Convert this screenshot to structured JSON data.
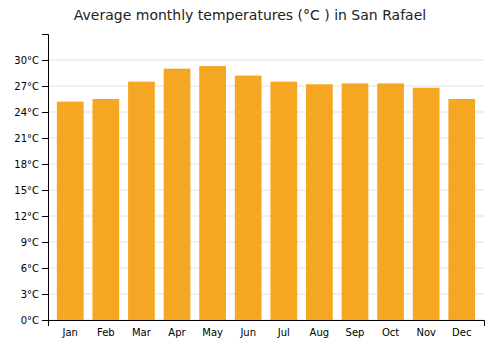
{
  "chart_data": {
    "type": "bar",
    "title": "Average monthly temperatures (°C ) in San Rafael",
    "categories": [
      "Jan",
      "Feb",
      "Mar",
      "Apr",
      "May",
      "Jun",
      "Jul",
      "Aug",
      "Sep",
      "Oct",
      "Nov",
      "Dec"
    ],
    "values": [
      25.2,
      25.5,
      27.5,
      29.0,
      29.3,
      28.2,
      27.5,
      27.2,
      27.3,
      27.3,
      26.8,
      25.5
    ],
    "color": "#F5A623",
    "ylim": [
      0,
      33
    ],
    "yticks": [
      {
        "value": 0,
        "label": "0°C"
      },
      {
        "value": 3,
        "label": "3°C"
      },
      {
        "value": 6,
        "label": "6°C"
      },
      {
        "value": 9,
        "label": "9°C"
      },
      {
        "value": 12,
        "label": "12°C"
      },
      {
        "value": 15,
        "label": "15°C"
      },
      {
        "value": 18,
        "label": "18°C"
      },
      {
        "value": 21,
        "label": "21°C"
      },
      {
        "value": 24,
        "label": "24°C"
      },
      {
        "value": 27,
        "label": "27°C"
      },
      {
        "value": 30,
        "label": "30°C"
      }
    ],
    "grid": true
  }
}
